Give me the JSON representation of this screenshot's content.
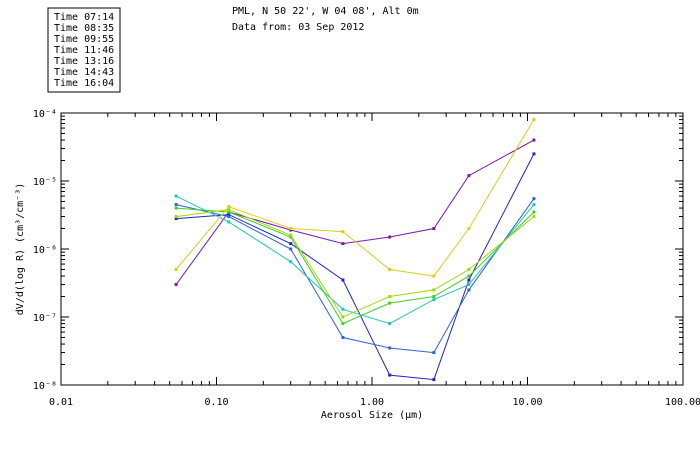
{
  "header": {
    "site": "PML, N 50 22', W 04 08', Alt 0m",
    "date": "Data from: 03 Sep 2012"
  },
  "chart_data": {
    "type": "line",
    "title": "PML, N 50 22', W 04 08', Alt 0m",
    "subtitle": "Data from: 03 Sep 2012",
    "xlabel": "Aerosol Size (µm)",
    "ylabel": "dV/d(log R) (cm³/cm⁻³)",
    "xscale": "log",
    "yscale": "log",
    "xlim": [
      0.01,
      100
    ],
    "ylim": [
      1e-08,
      0.0001
    ],
    "x_tick_labels": [
      "0.01",
      "0.10",
      "1.00",
      "10.00",
      "100.00"
    ],
    "y_tick_labels": [
      "10⁻⁸",
      "10⁻⁷",
      "10⁻⁶",
      "10⁻⁵",
      "10⁻⁴"
    ],
    "x": [
      0.055,
      0.12,
      0.3,
      0.65,
      1.3,
      2.5,
      4.2,
      11.0
    ],
    "legend_position": "top-left",
    "series": [
      {
        "name": "Time 07:14",
        "color": "#7b16b4",
        "values": [
          3e-07,
          3.5e-06,
          1.9e-06,
          1.2e-06,
          1.5e-06,
          2e-06,
          1.2e-05,
          4e-05
        ]
      },
      {
        "name": "Time 08:35",
        "color": "#2323c8",
        "values": [
          2.8e-06,
          3.2e-06,
          1.2e-06,
          3.5e-07,
          1.4e-08,
          1.2e-08,
          3.5e-07,
          2.5e-05
        ]
      },
      {
        "name": "Time 09:55",
        "color": "#2a62d8",
        "values": [
          4.5e-06,
          3e-06,
          1e-06,
          5e-08,
          3.5e-08,
          3e-08,
          2.5e-07,
          5.5e-06
        ]
      },
      {
        "name": "Time 11:46",
        "color": "#22c4c4",
        "values": [
          6e-06,
          2.5e-06,
          6.5e-07,
          1.3e-07,
          8e-08,
          1.8e-07,
          3e-07,
          4.5e-06
        ]
      },
      {
        "name": "Time 13:16",
        "color": "#3cd21e",
        "values": [
          4e-06,
          3.5e-06,
          1.5e-06,
          8e-08,
          1.6e-07,
          2e-07,
          4e-07,
          3.5e-06
        ]
      },
      {
        "name": "Time 14:43",
        "color": "#a6d40e",
        "values": [
          3e-06,
          3.8e-06,
          1.6e-06,
          1e-07,
          2e-07,
          2.5e-07,
          5e-07,
          3e-06
        ]
      },
      {
        "name": "Time 16:04",
        "color": "#ddcc1a",
        "values": [
          5e-07,
          4.2e-06,
          2e-06,
          1.8e-06,
          5e-07,
          4e-07,
          2e-06,
          8e-05
        ]
      }
    ]
  }
}
